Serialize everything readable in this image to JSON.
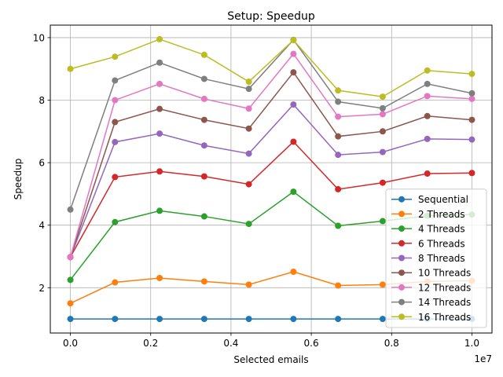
{
  "chart_data": {
    "type": "line",
    "title": "Setup: Speedup",
    "xlabel": "Selected emails",
    "ylabel": "Speedup",
    "x_offset_text": "1e7",
    "x": [
      0,
      1111111,
      2222222,
      3333333,
      4444444,
      5555555,
      6666666,
      7777777,
      8888888,
      10000000
    ],
    "x_ticks": [
      0,
      2000000,
      4000000,
      6000000,
      8000000,
      10000000
    ],
    "x_tick_labels": [
      "0.0",
      "0.2",
      "0.4",
      "0.6",
      "0.8",
      "1.0"
    ],
    "y_ticks": [
      2,
      4,
      6,
      8,
      10
    ],
    "y_tick_labels": [
      "2",
      "4",
      "6",
      "8",
      "10"
    ],
    "xlim": [
      -500000,
      10500000
    ],
    "ylim": [
      0.55,
      10.4
    ],
    "grid": true,
    "legend_position": "lower right",
    "series": [
      {
        "name": "Sequential",
        "color": "#1f77b4",
        "values": [
          1.0,
          1.0,
          1.0,
          1.0,
          1.0,
          1.0,
          1.0,
          1.0,
          1.0,
          1.0
        ]
      },
      {
        "name": "2 Threads",
        "color": "#ff7f0e",
        "values": [
          1.5,
          2.17,
          2.31,
          2.2,
          2.1,
          2.51,
          2.07,
          2.1,
          2.2,
          2.22
        ]
      },
      {
        "name": "4 Threads",
        "color": "#2ca02c",
        "values": [
          2.25,
          4.1,
          4.46,
          4.28,
          4.04,
          5.07,
          3.98,
          4.13,
          4.3,
          4.34
        ]
      },
      {
        "name": "6 Threads",
        "color": "#d62728",
        "values": [
          2.98,
          5.54,
          5.72,
          5.56,
          5.31,
          6.67,
          5.15,
          5.36,
          5.65,
          5.67
        ]
      },
      {
        "name": "8 Threads",
        "color": "#9467bd",
        "values": [
          2.98,
          6.66,
          6.93,
          6.55,
          6.29,
          7.86,
          6.25,
          6.34,
          6.76,
          6.74
        ]
      },
      {
        "name": "10 Threads",
        "color": "#8c564b",
        "values": [
          2.98,
          7.3,
          7.72,
          7.37,
          7.09,
          8.89,
          6.84,
          7.0,
          7.49,
          7.37
        ]
      },
      {
        "name": "12 Threads",
        "color": "#e377c2",
        "values": [
          2.98,
          8.0,
          8.52,
          8.04,
          7.73,
          9.48,
          7.47,
          7.55,
          8.13,
          8.04
        ]
      },
      {
        "name": "14 Threads",
        "color": "#7f7f7f",
        "values": [
          4.5,
          8.63,
          9.2,
          8.68,
          8.36,
          9.93,
          7.95,
          7.74,
          8.52,
          8.22
        ]
      },
      {
        "name": "16 Threads",
        "color": "#bcbd22",
        "values": [
          9.0,
          9.39,
          9.95,
          9.45,
          8.59,
          9.92,
          8.31,
          8.11,
          8.95,
          8.84
        ]
      }
    ]
  }
}
